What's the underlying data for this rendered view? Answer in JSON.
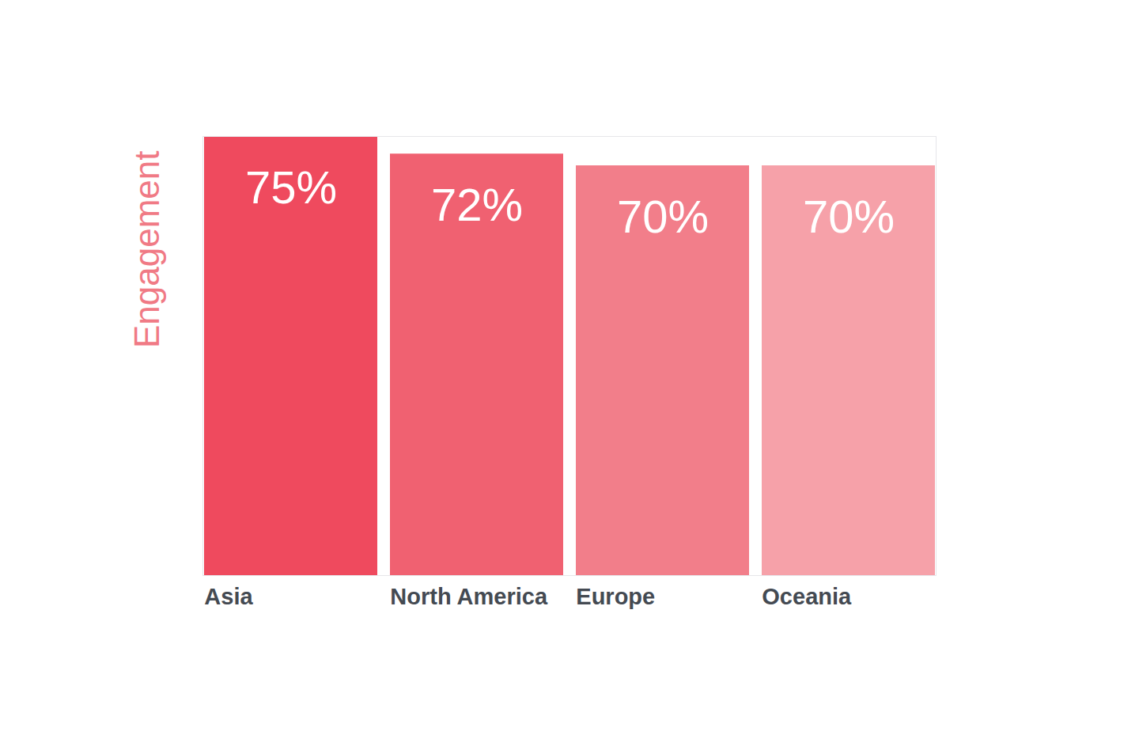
{
  "chart_data": {
    "type": "bar",
    "y_label": "Engagement",
    "categories": [
      "Asia",
      "North America",
      "Europe",
      "Oceania"
    ],
    "values": [
      75,
      72,
      70,
      70
    ],
    "value_labels": [
      "75%",
      "72%",
      "70%",
      "70%"
    ],
    "colors": [
      "#ef4a5e",
      "#f06171",
      "#f27e8a",
      "#f6a1a9"
    ],
    "ylim": [
      0,
      75
    ],
    "data_labels": true,
    "tick_labels": "x",
    "grid": false
  }
}
